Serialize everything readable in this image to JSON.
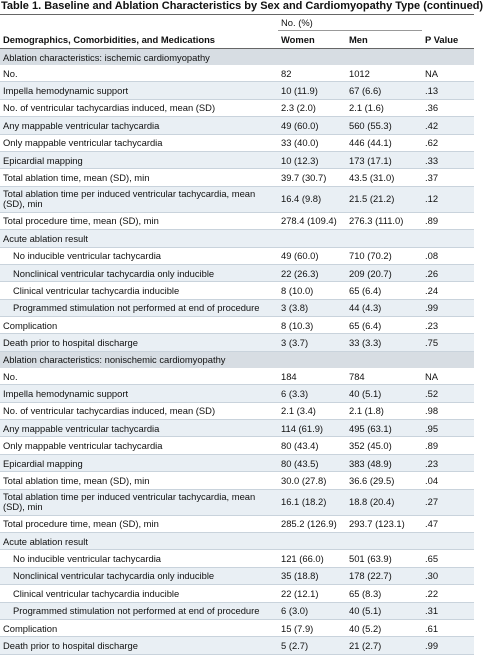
{
  "title": "Table 1. Baseline and Ablation Characteristics by Sex and Cardiomyopathy Type (continued)",
  "header": {
    "characteristic": "Demographics, Comorbidities, and Medications",
    "group": "No. (%)",
    "women": "Women",
    "men": "Men",
    "p": "P Value"
  },
  "sections": [
    {
      "title": "Ablation characteristics: ischemic cardiomyopathy",
      "rows": [
        [
          "No.",
          "82",
          "1012",
          "NA"
        ],
        [
          "Impella hemodynamic support",
          "10 (11.9)",
          "67 (6.6)",
          ".13"
        ],
        [
          "No. of ventricular tachycardias induced, mean (SD)",
          "2.3 (2.0)",
          "2.1 (1.6)",
          ".36"
        ],
        [
          "Any mappable ventricular tachycardia",
          "49 (60.0)",
          "560 (55.3)",
          ".42"
        ],
        [
          "Only mappable ventricular tachycardia",
          "33 (40.0)",
          "446 (44.1)",
          ".62"
        ],
        [
          "Epicardial mapping",
          "10 (12.3)",
          "173 (17.1)",
          ".33"
        ],
        [
          "Total ablation time, mean (SD), min",
          "39.7 (30.7)",
          "43.5 (31.0)",
          ".37"
        ],
        [
          "Total ablation time per induced ventricular tachycardia, mean (SD), min",
          "16.4 (9.8)",
          "21.5 (21.2)",
          ".12"
        ],
        [
          "Total procedure time, mean (SD), min",
          "278.4 (109.4)",
          "276.3 (111.0)",
          ".89"
        ],
        {
          "label": "Acute ablation result",
          "items": [
            [
              "No inducible ventricular tachycardia",
              "49 (60.0)",
              "710 (70.2)",
              ".08"
            ],
            [
              "Nonclinical ventricular tachycardia only inducible",
              "22 (26.3)",
              "209 (20.7)",
              ".26"
            ],
            [
              "Clinical ventricular tachycardia inducible",
              "8 (10.0)",
              "65 (6.4)",
              ".24"
            ],
            [
              "Programmed stimulation not performed at end of procedure",
              "3 (3.8)",
              "44 (4.3)",
              ".99"
            ]
          ]
        },
        [
          "Complication",
          "8 (10.3)",
          "65 (6.4)",
          ".23"
        ],
        [
          "Death prior to hospital discharge",
          "3 (3.7)",
          "33 (3.3)",
          ".75"
        ]
      ]
    },
    {
      "title": "Ablation characteristics: nonischemic cardiomyopathy",
      "rows": [
        [
          "No.",
          "184",
          "784",
          "NA"
        ],
        [
          "Impella hemodynamic support",
          "6 (3.3)",
          "40 (5.1)",
          ".52"
        ],
        [
          "No. of ventricular tachycardias induced, mean (SD)",
          "2.1 (3.4)",
          "2.1 (1.8)",
          ".98"
        ],
        [
          "Any mappable ventricular tachycardia",
          "114 (61.9)",
          "495 (63.1)",
          ".95"
        ],
        [
          "Only mappable ventricular tachycardia",
          "80 (43.4)",
          "352 (45.0)",
          ".89"
        ],
        [
          "Epicardial mapping",
          "80 (43.5)",
          "383 (48.9)",
          ".23"
        ],
        [
          "Total ablation time, mean (SD), min",
          "30.0 (27.8)",
          "36.6 (29.5)",
          ".04"
        ],
        [
          "Total ablation time per induced ventricular tachycardia, mean (SD), min",
          "16.1 (18.2)",
          "18.8 (20.4)",
          ".27"
        ],
        [
          "Total procedure time, mean (SD), min",
          "285.2 (126.9)",
          "293.7 (123.1)",
          ".47"
        ],
        {
          "label": "Acute ablation result",
          "items": [
            [
              "No inducible ventricular tachycardia",
              "121 (66.0)",
              "501 (63.9)",
              ".65"
            ],
            [
              "Nonclinical ventricular tachycardia only inducible",
              "35 (18.8)",
              "178 (22.7)",
              ".30"
            ],
            [
              "Clinical ventricular tachycardia inducible",
              "22 (12.1)",
              "65 (8.3)",
              ".22"
            ],
            [
              "Programmed stimulation not performed at end of procedure",
              "6 (3.0)",
              "40 (5.1)",
              ".31"
            ]
          ]
        },
        [
          "Complication",
          "15 (7.9)",
          "40 (5.2)",
          ".61"
        ],
        [
          "Death prior to hospital discharge",
          "5 (2.7)",
          "21 (2.7)",
          ".99"
        ]
      ]
    }
  ]
}
